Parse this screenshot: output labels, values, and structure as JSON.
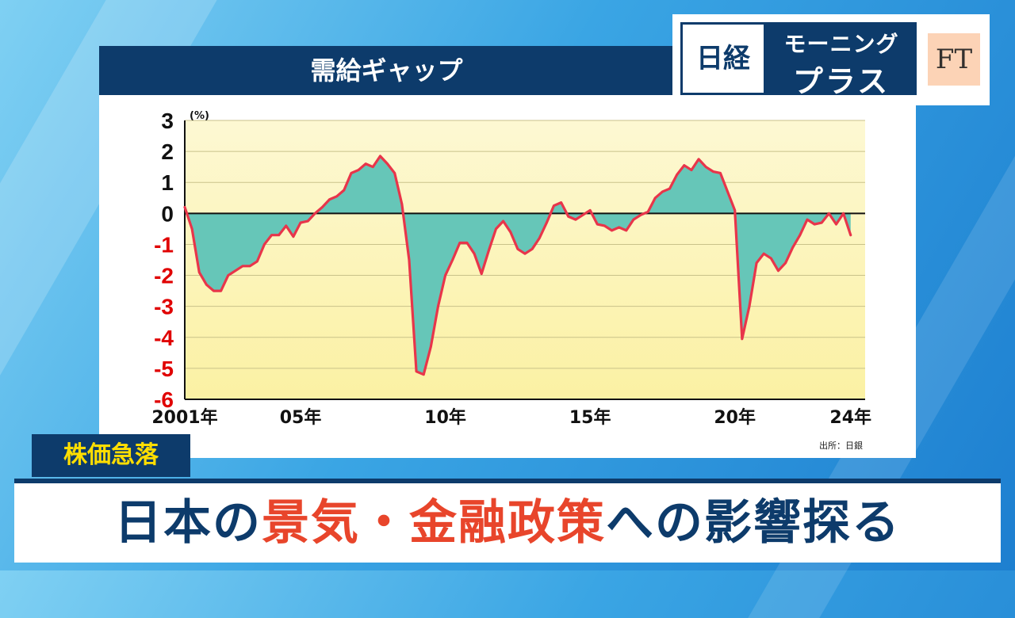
{
  "colors": {
    "navy": "#0d3b6b",
    "line": "#e8354a",
    "fill": "#66c6b8",
    "plot_bg_top": "#fdf8d3",
    "plot_bg_bottom": "#fbf1a3",
    "negative_tick": "#e00000",
    "tag_text": "#ffde00",
    "headline_accent": "#e8452b"
  },
  "logo": {
    "nikkei": "日経",
    "morning_line1": "モーニング",
    "morning_line2": "プラス",
    "ft": "FT"
  },
  "tag": "株価急落",
  "headline": {
    "part1": "日本の",
    "part2": "景気・金融政策",
    "part3": "への影響探る"
  },
  "source": "出所：日銀",
  "chart_data": {
    "type": "area",
    "title": "需給ギャップ",
    "unit_label": "(%)",
    "xlabel": "",
    "ylabel": "",
    "ylim": [
      -6,
      3
    ],
    "xlim": [
      2001,
      2024.5
    ],
    "y_ticks": [
      3,
      2,
      1,
      0,
      -1,
      -2,
      -3,
      -4,
      -5,
      -6
    ],
    "x_ticks": [
      {
        "value": 2001,
        "label": "2001年"
      },
      {
        "value": 2005,
        "label": "05年"
      },
      {
        "value": 2010,
        "label": "10年"
      },
      {
        "value": 2015,
        "label": "15年"
      },
      {
        "value": 2020,
        "label": "20年"
      },
      {
        "value": 2024,
        "label": "24年"
      }
    ],
    "grid": true,
    "series": [
      {
        "points": [
          [
            2001.0,
            0.2
          ],
          [
            2001.25,
            -0.5
          ],
          [
            2001.5,
            -1.9
          ],
          [
            2001.75,
            -2.3
          ],
          [
            2002.0,
            -2.5
          ],
          [
            2002.25,
            -2.5
          ],
          [
            2002.5,
            -2.0
          ],
          [
            2002.75,
            -1.85
          ],
          [
            2003.0,
            -1.7
          ],
          [
            2003.25,
            -1.7
          ],
          [
            2003.5,
            -1.55
          ],
          [
            2003.75,
            -1.0
          ],
          [
            2004.0,
            -0.7
          ],
          [
            2004.25,
            -0.7
          ],
          [
            2004.5,
            -0.4
          ],
          [
            2004.75,
            -0.75
          ],
          [
            2005.0,
            -0.3
          ],
          [
            2005.25,
            -0.25
          ],
          [
            2005.5,
            0.0
          ],
          [
            2005.75,
            0.2
          ],
          [
            2006.0,
            0.45
          ],
          [
            2006.25,
            0.55
          ],
          [
            2006.5,
            0.75
          ],
          [
            2006.75,
            1.3
          ],
          [
            2007.0,
            1.4
          ],
          [
            2007.25,
            1.6
          ],
          [
            2007.5,
            1.5
          ],
          [
            2007.75,
            1.85
          ],
          [
            2008.0,
            1.6
          ],
          [
            2008.25,
            1.3
          ],
          [
            2008.5,
            0.3
          ],
          [
            2008.75,
            -1.5
          ],
          [
            2009.0,
            -5.1
          ],
          [
            2009.25,
            -5.2
          ],
          [
            2009.5,
            -4.3
          ],
          [
            2009.75,
            -3.0
          ],
          [
            2010.0,
            -2.0
          ],
          [
            2010.25,
            -1.5
          ],
          [
            2010.5,
            -0.95
          ],
          [
            2010.75,
            -0.95
          ],
          [
            2011.0,
            -1.3
          ],
          [
            2011.25,
            -1.95
          ],
          [
            2011.5,
            -1.2
          ],
          [
            2011.75,
            -0.5
          ],
          [
            2012.0,
            -0.25
          ],
          [
            2012.25,
            -0.6
          ],
          [
            2012.5,
            -1.15
          ],
          [
            2012.75,
            -1.3
          ],
          [
            2013.0,
            -1.15
          ],
          [
            2013.25,
            -0.8
          ],
          [
            2013.5,
            -0.3
          ],
          [
            2013.75,
            0.25
          ],
          [
            2014.0,
            0.35
          ],
          [
            2014.25,
            -0.1
          ],
          [
            2014.5,
            -0.2
          ],
          [
            2014.75,
            -0.05
          ],
          [
            2015.0,
            0.1
          ],
          [
            2015.25,
            -0.35
          ],
          [
            2015.5,
            -0.4
          ],
          [
            2015.75,
            -0.55
          ],
          [
            2016.0,
            -0.45
          ],
          [
            2016.25,
            -0.55
          ],
          [
            2016.5,
            -0.2
          ],
          [
            2016.75,
            -0.05
          ],
          [
            2017.0,
            0.05
          ],
          [
            2017.25,
            0.5
          ],
          [
            2017.5,
            0.7
          ],
          [
            2017.75,
            0.8
          ],
          [
            2018.0,
            1.25
          ],
          [
            2018.25,
            1.55
          ],
          [
            2018.5,
            1.4
          ],
          [
            2018.75,
            1.75
          ],
          [
            2019.0,
            1.5
          ],
          [
            2019.25,
            1.35
          ],
          [
            2019.5,
            1.3
          ],
          [
            2019.75,
            0.7
          ],
          [
            2020.0,
            0.1
          ],
          [
            2020.25,
            -4.05
          ],
          [
            2020.5,
            -3.0
          ],
          [
            2020.75,
            -1.6
          ],
          [
            2021.0,
            -1.3
          ],
          [
            2021.25,
            -1.45
          ],
          [
            2021.5,
            -1.85
          ],
          [
            2021.75,
            -1.6
          ],
          [
            2022.0,
            -1.1
          ],
          [
            2022.25,
            -0.7
          ],
          [
            2022.5,
            -0.2
          ],
          [
            2022.75,
            -0.35
          ],
          [
            2023.0,
            -0.3
          ],
          [
            2023.25,
            0.0
          ],
          [
            2023.5,
            -0.35
          ],
          [
            2023.75,
            0.0
          ],
          [
            2024.0,
            -0.7
          ]
        ]
      }
    ]
  }
}
